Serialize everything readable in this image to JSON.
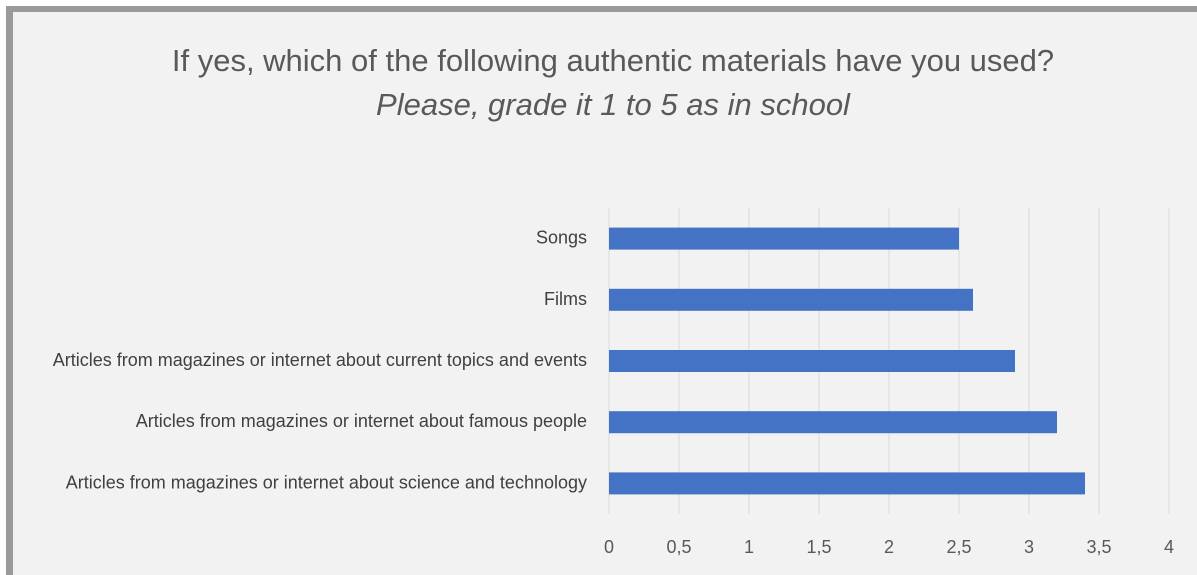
{
  "chart_data": {
    "type": "hbar",
    "title": "If yes, which of the following authentic materials have you used?",
    "subtitle": "Please, grade it 1 to 5 as in school",
    "categories": [
      "Songs",
      "Films",
      "Articles from magazines or internet about current topics and events",
      "Articles from magazines or internet about famous people",
      "Articles from magazines or internet about science and technology"
    ],
    "values": [
      2.5,
      2.6,
      2.9,
      3.2,
      3.4
    ],
    "color": "#4472c4",
    "xlim": [
      0,
      4
    ],
    "xticks": [
      0,
      {
        "value": 0.5,
        "label": "0,5"
      },
      1,
      {
        "value": 1.5,
        "label": "1,5"
      },
      2,
      {
        "value": 2.5,
        "label": "2,5"
      },
      3,
      {
        "value": 3.5,
        "label": "3,5"
      },
      4
    ],
    "grid": true
  }
}
